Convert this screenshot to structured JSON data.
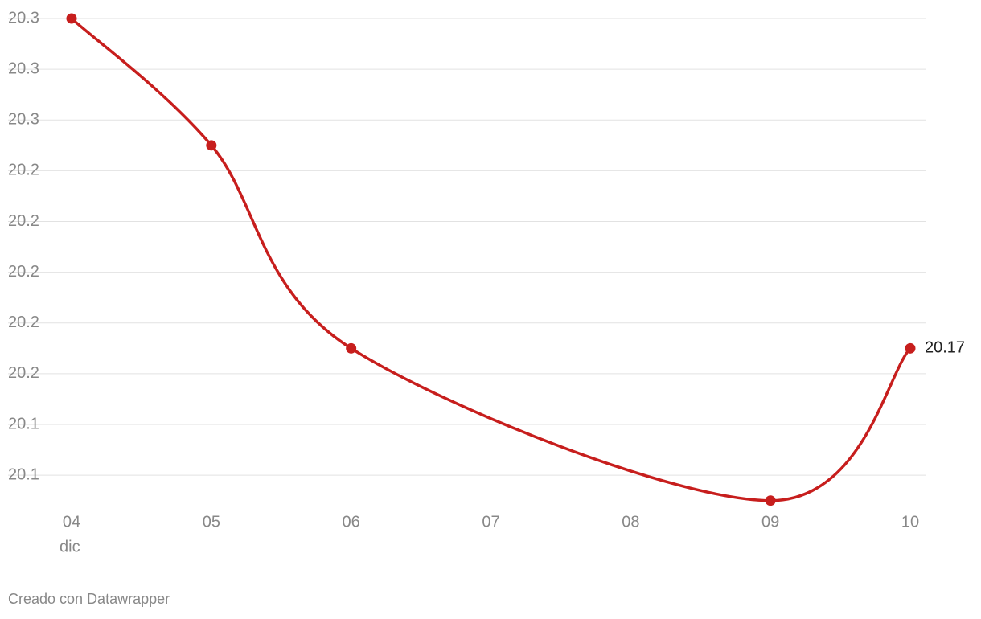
{
  "chart_data": {
    "type": "line",
    "x": [
      4,
      5,
      6,
      9,
      10
    ],
    "values": [
      20.3,
      20.25,
      20.17,
      20.11,
      20.17
    ],
    "color": "#c71e1d",
    "xlim": [
      4,
      10
    ],
    "xticks": [
      {
        "value": 4,
        "label": "04"
      },
      {
        "value": 5,
        "label": "05"
      },
      {
        "value": 6,
        "label": "06"
      },
      {
        "value": 7,
        "label": "07"
      },
      {
        "value": 8,
        "label": "08"
      },
      {
        "value": 9,
        "label": "09"
      },
      {
        "value": 10,
        "label": "10"
      }
    ],
    "x_unit_label": "dic",
    "ylim": [
      20.108,
      20.3
    ],
    "yticks": [
      {
        "value": 20.12,
        "label": "20.1"
      },
      {
        "value": 20.14,
        "label": "20.1"
      },
      {
        "value": 20.16,
        "label": "20.2"
      },
      {
        "value": 20.18,
        "label": "20.2"
      },
      {
        "value": 20.2,
        "label": "20.2"
      },
      {
        "value": 20.22,
        "label": "20.2"
      },
      {
        "value": 20.24,
        "label": "20.2"
      },
      {
        "value": 20.26,
        "label": "20.3"
      },
      {
        "value": 20.28,
        "label": "20.3"
      },
      {
        "value": 20.3,
        "label": "20.3"
      }
    ],
    "grid": true,
    "footer": "Creado con Datawrapper"
  }
}
